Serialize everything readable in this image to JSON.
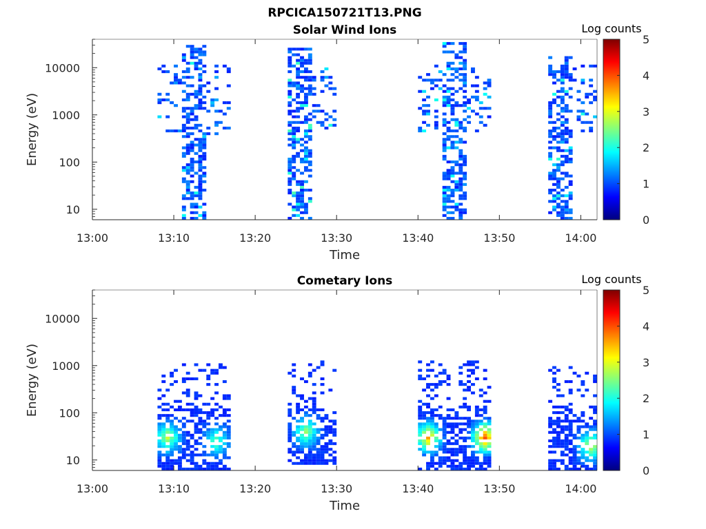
{
  "figure_title": "RPCICA150721T13.PNG",
  "chart_data": [
    {
      "type": "heatmap",
      "title": "Solar Wind Ions",
      "xlabel": "Time",
      "ylabel": "Energy (eV)",
      "x_ticks": [
        "13:00",
        "13:10",
        "13:20",
        "13:30",
        "13:40",
        "13:50",
        "14:00"
      ],
      "xlim": [
        "13:00",
        "14:02"
      ],
      "y_scale": "log",
      "y_ticks": [
        "10",
        "100",
        "1000",
        "10000"
      ],
      "ylim": [
        6,
        40000
      ],
      "colorbar": {
        "label": "Log counts",
        "range": [
          0,
          5
        ],
        "ticks": [
          "0",
          "1",
          "2",
          "3",
          "4",
          "5"
        ],
        "colormap": "jet"
      },
      "bursts": [
        {
          "start": "13:08",
          "end": "13:17",
          "core_start": "13:11",
          "core_end": "13:14",
          "e_min": 6,
          "e_max": 30000,
          "sparse_min": 350,
          "sparse_max": 12000,
          "peak_log_counts": 1.5
        },
        {
          "start": "13:24",
          "end": "13:30",
          "core_start": "13:24",
          "core_end": "13:27",
          "e_min": 6,
          "e_max": 25000,
          "sparse_min": 500,
          "sparse_max": 10000,
          "peak_log_counts": 1.8
        },
        {
          "start": "13:40",
          "end": "13:49",
          "core_start": "13:43",
          "core_end": "13:46",
          "e_min": 6,
          "e_max": 35000,
          "sparse_min": 400,
          "sparse_max": 12000,
          "peak_log_counts": 1.5
        },
        {
          "start": "13:56",
          "end": "14:02",
          "core_start": "13:56",
          "core_end": "13:59",
          "e_min": 6,
          "e_max": 18000,
          "sparse_min": 400,
          "sparse_max": 12000,
          "peak_log_counts": 1.6
        }
      ]
    },
    {
      "type": "heatmap",
      "title": "Cometary Ions",
      "xlabel": "Time",
      "ylabel": "Energy (eV)",
      "x_ticks": [
        "13:00",
        "13:10",
        "13:20",
        "13:30",
        "13:40",
        "13:50",
        "14:00"
      ],
      "xlim": [
        "13:00",
        "14:02"
      ],
      "y_scale": "log",
      "y_ticks": [
        "10",
        "100",
        "1000",
        "10000"
      ],
      "ylim": [
        6,
        40000
      ],
      "colorbar": {
        "label": "Log counts",
        "range": [
          0,
          5
        ],
        "ticks": [
          "0",
          "1",
          "2",
          "3",
          "4",
          "5"
        ],
        "colormap": "jet"
      },
      "bursts": [
        {
          "start": "13:08",
          "end": "13:12",
          "e_min": 6,
          "e_max": 1100,
          "hot_energy": 30,
          "hot_time": "13:09",
          "peak_log_counts": 2.8
        },
        {
          "start": "13:12",
          "end": "13:17",
          "e_min": 6,
          "e_max": 1300,
          "hot_energy": 25,
          "hot_time": "13:15",
          "peak_log_counts": 2.3
        },
        {
          "start": "13:24",
          "end": "13:30",
          "e_min": 8,
          "e_max": 1200,
          "hot_energy": 40,
          "hot_time": "13:26",
          "peak_log_counts": 2.6
        },
        {
          "start": "13:40",
          "end": "13:44",
          "e_min": 6,
          "e_max": 1300,
          "hot_energy": 30,
          "hot_time": "13:41",
          "peak_log_counts": 3.5
        },
        {
          "start": "13:44",
          "end": "13:49",
          "e_min": 6,
          "e_max": 1200,
          "hot_energy": 30,
          "hot_time": "13:48",
          "peak_log_counts": 4.0
        },
        {
          "start": "13:56",
          "end": "14:02",
          "e_min": 6,
          "e_max": 1000,
          "hot_energy": 20,
          "hot_time": "14:01",
          "peak_log_counts": 2.9
        }
      ]
    }
  ]
}
